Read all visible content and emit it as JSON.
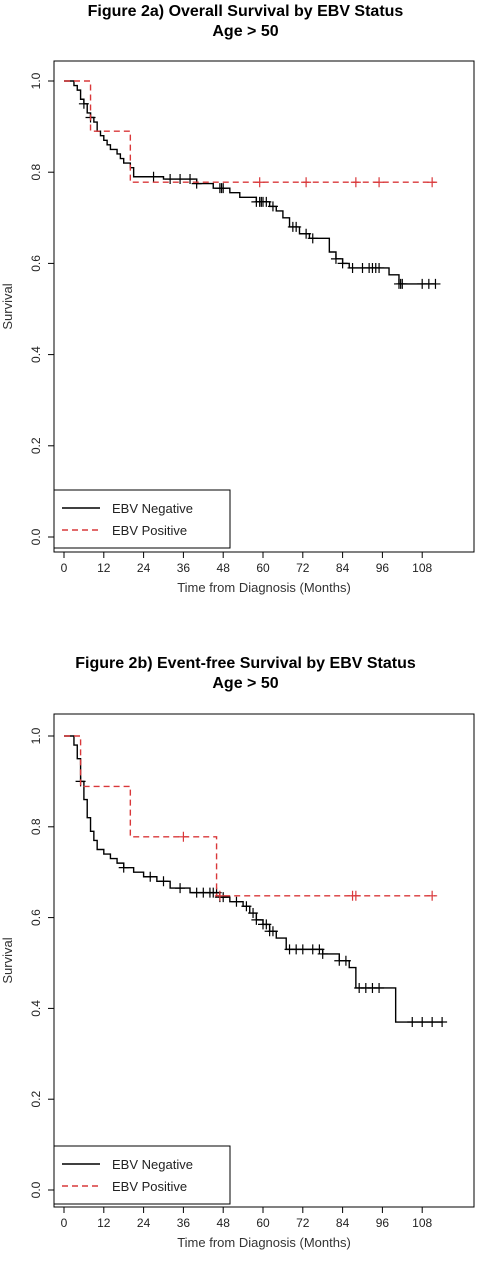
{
  "charts": [
    {
      "title_line1": "Figure 2a) Overall Survival by EBV Status",
      "title_line2": "Age > 50",
      "xlabel": "Time from Diagnosis (Months)",
      "ylabel": "Survival",
      "legend": [
        "EBV Negative",
        "EBV Positive"
      ]
    },
    {
      "title_line1": "Figure 2b) Event-free Survival by EBV Status",
      "title_line2": "Age > 50",
      "xlabel": "Time from Diagnosis (Months)",
      "ylabel": "Survival",
      "legend": [
        "EBV Negative",
        "EBV Positive"
      ]
    }
  ],
  "chart_data": [
    {
      "type": "line",
      "title": "Figure 2a) Overall Survival by EBV Status Age > 50",
      "xlabel": "Time from Diagnosis (Months)",
      "ylabel": "Survival",
      "xlim": [
        0,
        120
      ],
      "ylim": [
        0,
        1
      ],
      "xticks": [
        0,
        12,
        24,
        36,
        48,
        60,
        72,
        84,
        96,
        108
      ],
      "yticks": [
        0.0,
        0.2,
        0.4,
        0.6,
        0.8,
        1.0
      ],
      "grid": false,
      "legend_position": "bottom-left",
      "colors": {
        "EBV Negative": "#000000",
        "EBV Positive": "#d9383a"
      },
      "series": [
        {
          "name": "EBV Negative",
          "style": "solid",
          "step_x": [
            0,
            3,
            4,
            5,
            6,
            7,
            8,
            9,
            10,
            11,
            12,
            13,
            14,
            16,
            17,
            18,
            20,
            21,
            30,
            40,
            45,
            50,
            53,
            58,
            62,
            64,
            66,
            68,
            71,
            74,
            80,
            82,
            84,
            86,
            98,
            101,
            112
          ],
          "step_y": [
            1.0,
            0.99,
            0.98,
            0.96,
            0.95,
            0.93,
            0.92,
            0.91,
            0.89,
            0.88,
            0.87,
            0.86,
            0.85,
            0.84,
            0.83,
            0.82,
            0.81,
            0.79,
            0.785,
            0.775,
            0.765,
            0.755,
            0.745,
            0.735,
            0.725,
            0.715,
            0.7,
            0.68,
            0.665,
            0.655,
            0.625,
            0.61,
            0.6,
            0.59,
            0.575,
            0.555,
            0.555
          ],
          "censor_x": [
            6,
            8,
            27,
            32,
            35,
            38,
            40,
            47,
            47.5,
            48,
            58,
            59,
            59.5,
            60,
            61,
            63,
            69,
            70,
            73,
            75,
            82,
            84,
            87,
            90,
            92,
            93,
            94,
            95,
            101,
            101.5,
            102,
            108,
            110,
            112
          ]
        },
        {
          "name": "EBV Positive",
          "style": "dashed",
          "step_x": [
            0,
            8,
            20,
            112
          ],
          "step_y": [
            1.0,
            0.89,
            0.778,
            0.778
          ],
          "censor_x": [
            59,
            73,
            88,
            95,
            111
          ]
        }
      ]
    },
    {
      "type": "line",
      "title": "Figure 2b) Event-free Survival by EBV Status Age > 50",
      "xlabel": "Time from Diagnosis (Months)",
      "ylabel": "Survival",
      "xlim": [
        0,
        120
      ],
      "ylim": [
        0,
        1
      ],
      "xticks": [
        0,
        12,
        24,
        36,
        48,
        60,
        72,
        84,
        96,
        108
      ],
      "yticks": [
        0.0,
        0.2,
        0.4,
        0.6,
        0.8,
        1.0
      ],
      "grid": false,
      "legend_position": "bottom-left",
      "colors": {
        "EBV Negative": "#000000",
        "EBV Positive": "#d9383a"
      },
      "series": [
        {
          "name": "EBV Negative",
          "style": "solid",
          "step_x": [
            0,
            3,
            4,
            5,
            6,
            7,
            8,
            9,
            10,
            12,
            14,
            16,
            18,
            21,
            24,
            28,
            32,
            38,
            47,
            50,
            54,
            56,
            58,
            60,
            62,
            64,
            67,
            78,
            83,
            86,
            88,
            100,
            114
          ],
          "step_y": [
            1.0,
            0.98,
            0.95,
            0.9,
            0.86,
            0.82,
            0.79,
            0.77,
            0.75,
            0.74,
            0.73,
            0.72,
            0.71,
            0.7,
            0.69,
            0.68,
            0.665,
            0.655,
            0.645,
            0.635,
            0.625,
            0.61,
            0.595,
            0.585,
            0.57,
            0.555,
            0.53,
            0.52,
            0.505,
            0.49,
            0.445,
            0.37,
            0.37
          ],
          "censor_x": [
            5,
            18,
            26,
            30,
            35,
            40,
            42,
            44,
            45,
            46,
            47,
            48,
            52,
            55,
            57,
            58,
            60,
            61,
            62,
            63,
            68,
            70,
            72,
            75,
            77,
            78,
            83,
            85,
            89,
            91,
            93,
            95,
            105,
            108,
            111,
            114
          ]
        },
        {
          "name": "EBV Positive",
          "style": "dashed",
          "step_x": [
            0,
            5,
            20,
            46,
            112
          ],
          "step_y": [
            1.0,
            0.889,
            0.778,
            0.648,
            0.648
          ],
          "censor_x": [
            36,
            47,
            87,
            88,
            111
          ]
        }
      ]
    }
  ]
}
